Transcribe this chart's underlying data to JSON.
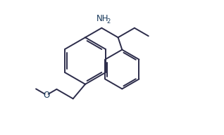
{
  "bg_color": "#ffffff",
  "line_color": "#2c2c4a",
  "line_width": 1.4,
  "text_color": "#1a3a5c",
  "figsize": [
    3.18,
    1.92
  ],
  "dpi": 100,
  "xlim": [
    0,
    10
  ],
  "ylim": [
    0,
    6
  ]
}
